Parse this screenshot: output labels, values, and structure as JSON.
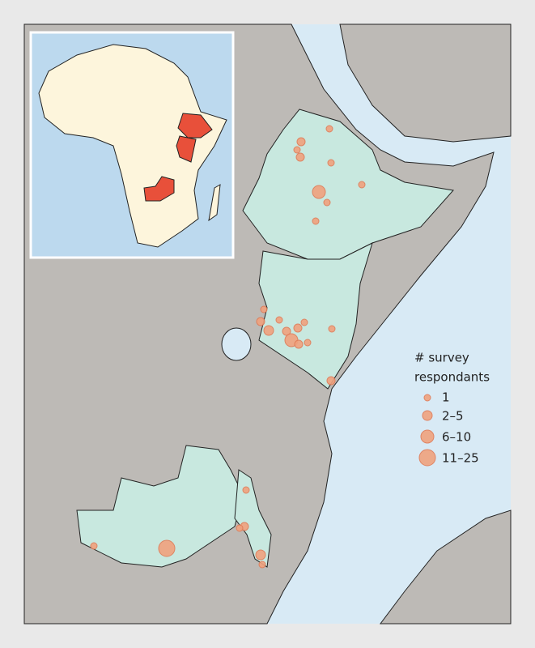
{
  "legend": {
    "title_lines": [
      "# survey",
      "respondants"
    ],
    "items": [
      "1",
      "2–5",
      "6–10",
      "11–25"
    ]
  }
}
